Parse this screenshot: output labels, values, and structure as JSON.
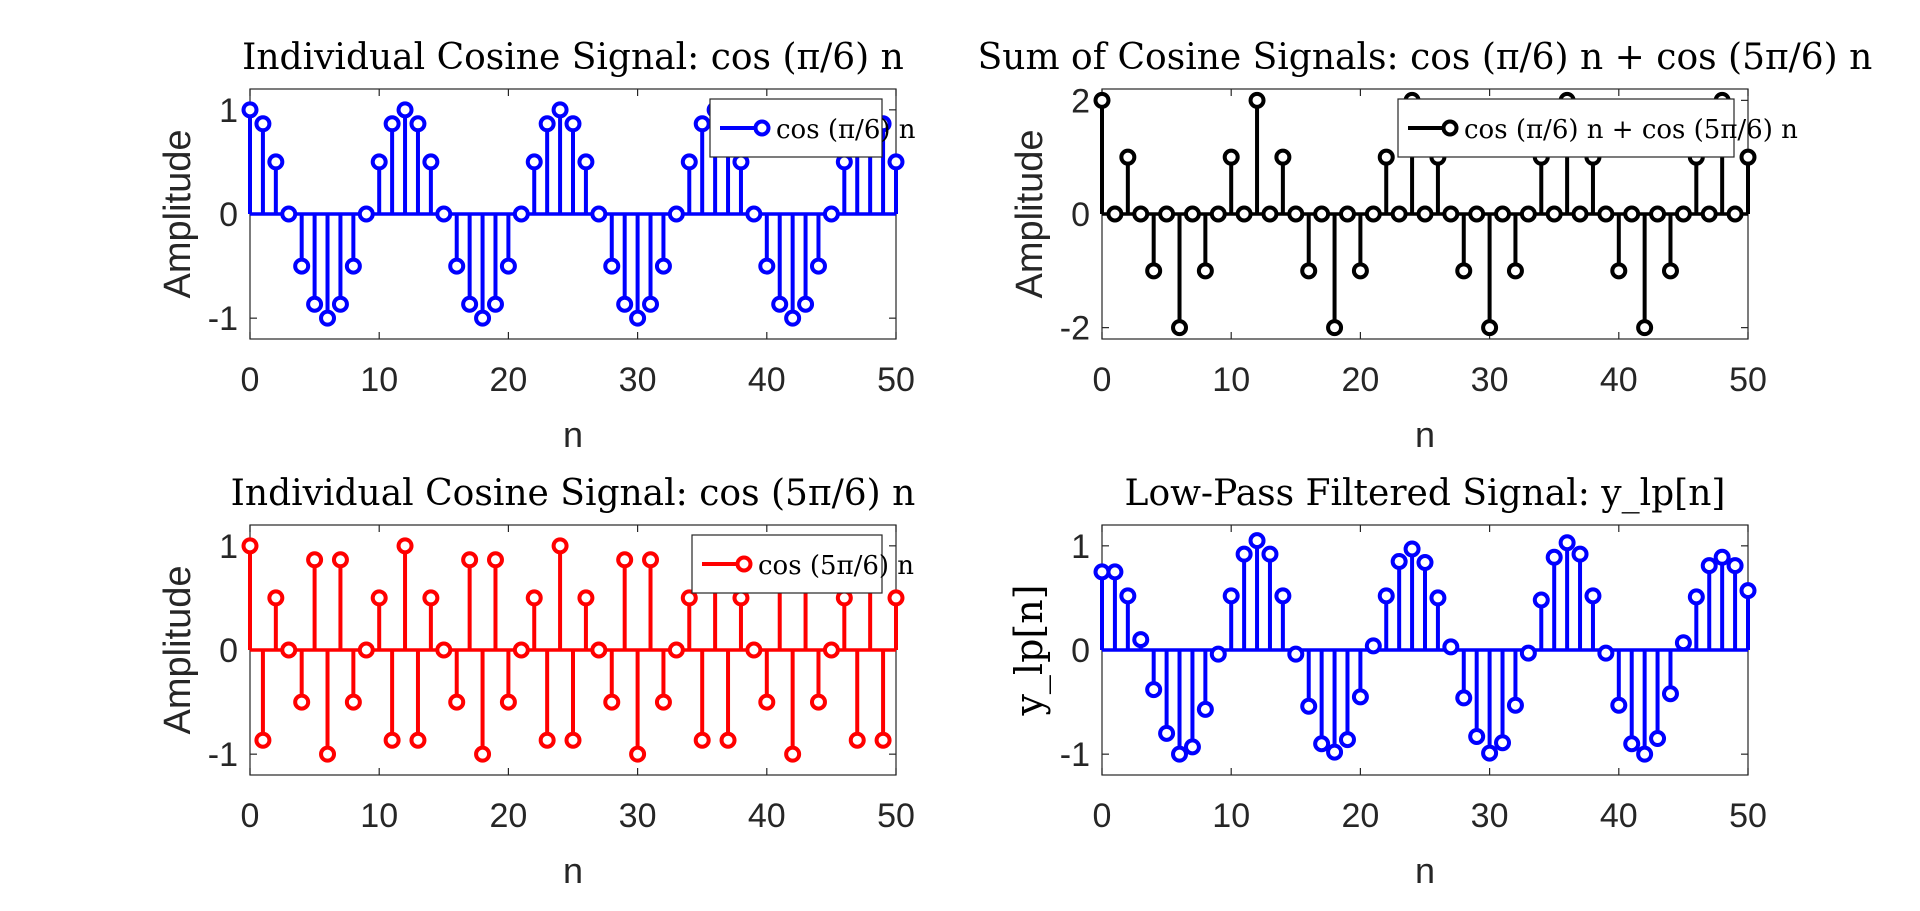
{
  "chart_data": [
    {
      "type": "stem",
      "title": "Individual Cosine Signal: cos (π/6) n",
      "xlabel": "n",
      "ylabel": "Amplitude",
      "xlim": [
        0,
        50
      ],
      "ylim": [
        -1.2,
        1.2
      ],
      "xticks": [
        "0",
        "10",
        "20",
        "30",
        "40",
        "50"
      ],
      "yticks": [
        "1",
        "0",
        "-1"
      ],
      "legend": "cos (π/6) n",
      "legend_location": "top-right",
      "color": "#0000ff",
      "x": [
        0,
        1,
        2,
        3,
        4,
        5,
        6,
        7,
        8,
        9,
        10,
        11,
        12,
        13,
        14,
        15,
        16,
        17,
        18,
        19,
        20,
        21,
        22,
        23,
        24,
        25,
        26,
        27,
        28,
        29,
        30,
        31,
        32,
        33,
        34,
        35,
        36,
        37,
        38,
        39,
        40,
        41,
        42,
        43,
        44,
        45,
        46,
        47,
        48,
        49,
        50
      ],
      "y": [
        1,
        0.866,
        0.5,
        0,
        -0.5,
        -0.866,
        -1,
        -0.866,
        -0.5,
        0,
        0.5,
        0.866,
        1,
        0.866,
        0.5,
        0,
        -0.5,
        -0.866,
        -1,
        -0.866,
        -0.5,
        0,
        0.5,
        0.866,
        1,
        0.866,
        0.5,
        0,
        -0.5,
        -0.866,
        -1,
        -0.866,
        -0.5,
        0,
        0.5,
        0.866,
        1,
        0.866,
        0.5,
        0,
        -0.5,
        -0.866,
        -1,
        -0.866,
        -0.5,
        0,
        0.5,
        0.866,
        1,
        0.866,
        0.5
      ]
    },
    {
      "type": "stem",
      "title": "Sum of Cosine Signals: cos (π/6) n + cos (5π/6) n",
      "xlabel": "n",
      "ylabel": "Amplitude",
      "xlim": [
        0,
        50
      ],
      "ylim": [
        -2.2,
        2.2
      ],
      "xticks": [
        "0",
        "10",
        "20",
        "30",
        "40",
        "50"
      ],
      "yticks": [
        "2",
        "0",
        "-2"
      ],
      "legend": "cos (π/6) n + cos (5π/6) n",
      "legend_location": "top-right",
      "color": "#000000",
      "x": [
        0,
        1,
        2,
        3,
        4,
        5,
        6,
        7,
        8,
        9,
        10,
        11,
        12,
        13,
        14,
        15,
        16,
        17,
        18,
        19,
        20,
        21,
        22,
        23,
        24,
        25,
        26,
        27,
        28,
        29,
        30,
        31,
        32,
        33,
        34,
        35,
        36,
        37,
        38,
        39,
        40,
        41,
        42,
        43,
        44,
        45,
        46,
        47,
        48,
        49,
        50
      ],
      "y": [
        2,
        0,
        1,
        0,
        -1,
        0,
        -2,
        0,
        -1,
        0,
        1,
        0,
        2,
        0,
        1,
        0,
        -1,
        0,
        -2,
        0,
        -1,
        0,
        1,
        0,
        2,
        0,
        1,
        0,
        -1,
        0,
        -2,
        0,
        -1,
        0,
        1,
        0,
        2,
        0,
        1,
        0,
        -1,
        0,
        -2,
        0,
        -1,
        0,
        1,
        0,
        2,
        0,
        1
      ]
    },
    {
      "type": "stem",
      "title": "Individual Cosine Signal: cos (5π/6) n",
      "xlabel": "n",
      "ylabel": "Amplitude",
      "xlim": [
        0,
        50
      ],
      "ylim": [
        -1.2,
        1.2
      ],
      "xticks": [
        "0",
        "10",
        "20",
        "30",
        "40",
        "50"
      ],
      "yticks": [
        "1",
        "0",
        "-1"
      ],
      "legend": "cos (5π/6) n",
      "legend_location": "top-right",
      "color": "#ff0000",
      "x": [
        0,
        1,
        2,
        3,
        4,
        5,
        6,
        7,
        8,
        9,
        10,
        11,
        12,
        13,
        14,
        15,
        16,
        17,
        18,
        19,
        20,
        21,
        22,
        23,
        24,
        25,
        26,
        27,
        28,
        29,
        30,
        31,
        32,
        33,
        34,
        35,
        36,
        37,
        38,
        39,
        40,
        41,
        42,
        43,
        44,
        45,
        46,
        47,
        48,
        49,
        50
      ],
      "y": [
        1,
        -0.866,
        0.5,
        0,
        -0.5,
        0.866,
        -1,
        0.866,
        -0.5,
        0,
        0.5,
        -0.866,
        1,
        -0.866,
        0.5,
        0,
        -0.5,
        0.866,
        -1,
        0.866,
        -0.5,
        0,
        0.5,
        -0.866,
        1,
        -0.866,
        0.5,
        0,
        -0.5,
        0.866,
        -1,
        0.866,
        -0.5,
        0,
        0.5,
        -0.866,
        1,
        -0.866,
        0.5,
        0,
        -0.5,
        0.866,
        -1,
        0.866,
        -0.5,
        0,
        0.5,
        -0.866,
        1,
        -0.866,
        0.5
      ]
    },
    {
      "type": "stem",
      "title": "Low-Pass Filtered Signal: y_lp[n]",
      "xlabel": "n",
      "ylabel": "y_lp[n]",
      "xlim": [
        0,
        50
      ],
      "ylim": [
        -1.2,
        1.2
      ],
      "xticks": [
        "0",
        "10",
        "20",
        "30",
        "40",
        "50"
      ],
      "yticks": [
        "1",
        "0",
        "-1"
      ],
      "legend": "",
      "color": "#0000ff",
      "x": [
        0,
        1,
        2,
        3,
        4,
        5,
        6,
        7,
        8,
        9,
        10,
        11,
        12,
        13,
        14,
        15,
        16,
        17,
        18,
        19,
        20,
        21,
        22,
        23,
        24,
        25,
        26,
        27,
        28,
        29,
        30,
        31,
        32,
        33,
        34,
        35,
        36,
        37,
        38,
        39,
        40,
        41,
        42,
        43,
        44,
        45,
        46,
        47,
        48,
        49,
        50
      ],
      "y": [
        0.75,
        0.75,
        0.52,
        0.1,
        -0.38,
        -0.8,
        -1.0,
        -0.93,
        -0.57,
        -0.04,
        0.52,
        0.92,
        1.05,
        0.92,
        0.52,
        -0.04,
        -0.54,
        -0.9,
        -0.98,
        -0.86,
        -0.45,
        0.04,
        0.52,
        0.85,
        0.97,
        0.84,
        0.5,
        0.03,
        -0.46,
        -0.83,
        -0.99,
        -0.89,
        -0.53,
        -0.03,
        0.48,
        0.89,
        1.03,
        0.92,
        0.52,
        -0.03,
        -0.53,
        -0.9,
        -1.0,
        -0.85,
        -0.42,
        0.07,
        0.51,
        0.81,
        0.89,
        0.81,
        0.57
      ]
    }
  ]
}
